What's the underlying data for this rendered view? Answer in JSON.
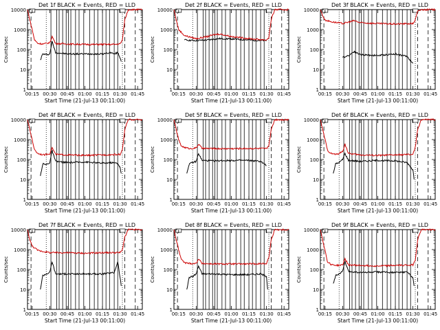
{
  "figure": {
    "x_ticks": [
      "00:15",
      "00:30",
      "00:45",
      "01:00",
      "01:15",
      "01:30",
      "01:45"
    ],
    "y_ticks": [
      "1",
      "10",
      "100",
      "1000",
      "10000"
    ],
    "ylabel": "Counts/sec",
    "xlabel_prefix": "Start Time (21-Jul-13 00:11:00)",
    "line_colors": {
      "events": "#000000",
      "lld": "#cc0000"
    }
  },
  "chart_data": [
    {
      "type": "line",
      "log_y": true,
      "ylim": [
        1,
        10000
      ],
      "title": "Det 1f BLACK = Events, RED = LLD",
      "xlabel": "Start Time (21-Jul-13 00:11:00)",
      "ylabel": "Counts/sec",
      "x_range": [
        "00:11",
        "01:49"
      ],
      "series": [
        {
          "name": "Events",
          "color": "#000000",
          "x": [
            "00:22",
            "00:24",
            "00:27",
            "00:30",
            "00:32",
            "00:35",
            "00:45",
            "01:00",
            "01:15",
            "01:22",
            "01:25",
            "01:28",
            "01:30",
            "01:31"
          ],
          "y": [
            30,
            60,
            55,
            60,
            250,
            70,
            60,
            60,
            60,
            70,
            60,
            70,
            40,
            25
          ]
        },
        {
          "name": "LLD",
          "color": "#cc0000",
          "x": [
            "00:11",
            "00:13",
            "00:15",
            "00:17",
            "00:20",
            "00:25",
            "00:30",
            "00:32",
            "00:35",
            "00:45",
            "01:00",
            "01:15",
            "01:25",
            "01:30",
            "01:32",
            "01:34",
            "01:37",
            "01:42",
            "01:49"
          ],
          "y": [
            10000,
            3000,
            1000,
            300,
            200,
            190,
            220,
            450,
            200,
            190,
            180,
            180,
            180,
            190,
            300,
            3000,
            10000,
            10000,
            10000
          ]
        }
      ]
    },
    {
      "type": "line",
      "log_y": true,
      "ylim": [
        1,
        10000
      ],
      "title": "Det 2f BLACK = Events, RED = LLD",
      "xlabel": "Start Time (21-Jul-13 00:11:00)",
      "ylabel": "Counts/sec",
      "x_range": [
        "00:11",
        "01:49"
      ],
      "series": [
        {
          "name": "Events",
          "color": "#000000",
          "x": [
            "00:20",
            "00:30",
            "00:40",
            "00:50",
            "01:00",
            "01:10",
            "01:20",
            "01:30"
          ],
          "y": [
            300,
            280,
            300,
            350,
            340,
            310,
            290,
            280
          ]
        },
        {
          "name": "LLD",
          "color": "#cc0000",
          "x": [
            "00:11",
            "00:13",
            "00:15",
            "00:20",
            "00:30",
            "00:40",
            "00:45",
            "00:50",
            "01:00",
            "01:10",
            "01:20",
            "01:30",
            "01:32",
            "01:34",
            "01:37",
            "01:42",
            "01:49"
          ],
          "y": [
            10000,
            3000,
            1000,
            500,
            350,
            450,
            550,
            600,
            450,
            380,
            330,
            300,
            400,
            3000,
            10000,
            10000,
            10000
          ]
        }
      ]
    },
    {
      "type": "line",
      "log_y": true,
      "ylim": [
        1,
        10000
      ],
      "title": "Det 3f BLACK = Events, RED = LLD",
      "xlabel": "Start Time (21-Jul-13 00:11:00)",
      "ylabel": "Counts/sec",
      "x_range": [
        "00:11",
        "01:49"
      ],
      "series": [
        {
          "name": "Events",
          "color": "#000000",
          "x": [
            "00:30",
            "00:35",
            "00:40",
            "00:45",
            "01:00",
            "01:15",
            "01:25",
            "01:30"
          ],
          "y": [
            40,
            50,
            80,
            55,
            50,
            60,
            45,
            20
          ]
        },
        {
          "name": "LLD",
          "color": "#cc0000",
          "x": [
            "00:11",
            "00:13",
            "00:15",
            "00:20",
            "00:30",
            "00:40",
            "00:45",
            "01:00",
            "01:15",
            "01:30",
            "01:32",
            "01:34",
            "01:37",
            "01:42",
            "01:49"
          ],
          "y": [
            10000,
            5000,
            3000,
            2500,
            2000,
            2800,
            2200,
            2000,
            1900,
            2000,
            3000,
            8000,
            10000,
            10000,
            10000
          ]
        }
      ]
    },
    {
      "type": "line",
      "log_y": true,
      "ylim": [
        1,
        10000
      ],
      "title": "Det 4f BLACK = Events, RED = LLD",
      "xlabel": "Start Time (21-Jul-13 00:11:00)",
      "ylabel": "Counts/sec",
      "x_range": [
        "00:11",
        "01:49"
      ],
      "series": [
        {
          "name": "Events",
          "color": "#000000",
          "x": [
            "00:22",
            "00:24",
            "00:27",
            "00:30",
            "00:32",
            "00:35",
            "00:45",
            "01:00",
            "01:15",
            "01:22",
            "01:28",
            "01:30",
            "01:31"
          ],
          "y": [
            15,
            60,
            55,
            70,
            280,
            80,
            70,
            75,
            65,
            70,
            65,
            40,
            20
          ]
        },
        {
          "name": "LLD",
          "color": "#cc0000",
          "x": [
            "00:11",
            "00:13",
            "00:15",
            "00:17",
            "00:20",
            "00:25",
            "00:30",
            "00:32",
            "00:35",
            "00:45",
            "01:00",
            "01:15",
            "01:30",
            "01:32",
            "01:34",
            "01:37",
            "01:42",
            "01:49"
          ],
          "y": [
            10000,
            3000,
            1000,
            300,
            200,
            170,
            200,
            400,
            180,
            170,
            160,
            170,
            180,
            300,
            3000,
            10000,
            10000,
            10000
          ]
        }
      ]
    },
    {
      "type": "line",
      "log_y": true,
      "ylim": [
        1,
        10000
      ],
      "title": "Det 5f BLACK = Events, RED = LLD",
      "xlabel": "Start Time (21-Jul-13 00:11:00)",
      "ylabel": "Counts/sec",
      "x_range": [
        "00:11",
        "01:49"
      ],
      "series": [
        {
          "name": "Events",
          "color": "#000000",
          "x": [
            "00:22",
            "00:24",
            "00:27",
            "00:30",
            "00:32",
            "00:35",
            "00:45",
            "01:00",
            "01:15",
            "01:25",
            "01:30"
          ],
          "y": [
            20,
            60,
            70,
            80,
            200,
            90,
            85,
            90,
            90,
            80,
            50
          ]
        },
        {
          "name": "LLD",
          "color": "#cc0000",
          "x": [
            "00:11",
            "00:13",
            "00:15",
            "00:17",
            "00:20",
            "00:25",
            "00:30",
            "00:32",
            "00:35",
            "00:45",
            "01:00",
            "01:15",
            "01:30",
            "01:32",
            "01:34",
            "01:37",
            "01:42",
            "01:49"
          ],
          "y": [
            10000,
            3000,
            1000,
            500,
            400,
            350,
            380,
            600,
            360,
            350,
            350,
            360,
            350,
            500,
            3000,
            10000,
            10000,
            10000
          ]
        }
      ]
    },
    {
      "type": "line",
      "log_y": true,
      "ylim": [
        1,
        10000
      ],
      "title": "Det 6f BLACK = Events, RED = LLD",
      "xlabel": "Start Time (21-Jul-13 00:11:00)",
      "ylabel": "Counts/sec",
      "x_range": [
        "00:11",
        "01:49"
      ],
      "series": [
        {
          "name": "Events",
          "color": "#000000",
          "x": [
            "00:22",
            "00:24",
            "00:27",
            "00:30",
            "00:32",
            "00:35",
            "00:45",
            "01:00",
            "01:15",
            "01:25",
            "01:30",
            "01:31"
          ],
          "y": [
            20,
            60,
            70,
            100,
            200,
            90,
            80,
            90,
            85,
            70,
            30,
            10
          ]
        },
        {
          "name": "LLD",
          "color": "#cc0000",
          "x": [
            "00:11",
            "00:13",
            "00:15",
            "00:17",
            "00:20",
            "00:25",
            "00:30",
            "00:32",
            "00:35",
            "00:45",
            "01:00",
            "01:15",
            "01:30",
            "01:32",
            "01:34",
            "01:37",
            "01:42",
            "01:49"
          ],
          "y": [
            10000,
            3000,
            1000,
            300,
            200,
            180,
            250,
            600,
            200,
            170,
            160,
            170,
            180,
            400,
            3000,
            10000,
            10000,
            10000
          ]
        }
      ]
    },
    {
      "type": "line",
      "log_y": true,
      "ylim": [
        1,
        10000
      ],
      "title": "Det 7f BLACK = Events, RED = LLD",
      "xlabel": "Start Time (21-Jul-13 00:11:00)",
      "ylabel": "Counts/sec",
      "x_range": [
        "00:11",
        "01:49"
      ],
      "series": [
        {
          "name": "Events",
          "color": "#000000",
          "x": [
            "00:22",
            "00:24",
            "00:27",
            "00:30",
            "00:32",
            "00:35",
            "00:45",
            "01:00",
            "01:15",
            "01:25",
            "01:28",
            "01:30",
            "01:31"
          ],
          "y": [
            10,
            50,
            60,
            70,
            250,
            60,
            60,
            60,
            60,
            70,
            250,
            40,
            15
          ]
        },
        {
          "name": "LLD",
          "color": "#cc0000",
          "x": [
            "00:11",
            "00:13",
            "00:15",
            "00:20",
            "00:30",
            "00:45",
            "01:00",
            "01:15",
            "01:30",
            "01:32",
            "01:34",
            "01:37",
            "01:42",
            "01:49"
          ],
          "y": [
            10000,
            3000,
            1500,
            900,
            700,
            700,
            650,
            700,
            700,
            1000,
            4000,
            10000,
            10000,
            10000
          ]
        }
      ]
    },
    {
      "type": "line",
      "log_y": true,
      "ylim": [
        1,
        10000
      ],
      "title": "Det 8f BLACK = Events, RED = LLD",
      "xlabel": "Start Time (21-Jul-13 00:11:00)",
      "ylabel": "Counts/sec",
      "x_range": [
        "00:11",
        "01:49"
      ],
      "series": [
        {
          "name": "Events",
          "color": "#000000",
          "x": [
            "00:22",
            "00:24",
            "00:27",
            "00:30",
            "00:32",
            "00:35",
            "00:45",
            "01:00",
            "01:15",
            "01:25",
            "01:30",
            "01:31"
          ],
          "y": [
            10,
            40,
            45,
            60,
            150,
            60,
            60,
            55,
            55,
            60,
            45,
            10
          ]
        },
        {
          "name": "LLD",
          "color": "#cc0000",
          "x": [
            "00:11",
            "00:13",
            "00:15",
            "00:17",
            "00:20",
            "00:25",
            "00:30",
            "00:32",
            "00:35",
            "00:45",
            "01:00",
            "01:15",
            "01:30",
            "01:32",
            "01:34",
            "01:37",
            "01:42",
            "01:49"
          ],
          "y": [
            10000,
            3000,
            1000,
            350,
            220,
            200,
            200,
            350,
            200,
            190,
            190,
            190,
            200,
            400,
            3000,
            10000,
            10000,
            10000
          ]
        }
      ]
    },
    {
      "type": "line",
      "log_y": true,
      "ylim": [
        1,
        10000
      ],
      "title": "Det 9f BLACK = Events, RED = LLD",
      "xlabel": "Start Time (21-Jul-13 00:11:00)",
      "ylabel": "Counts/sec",
      "x_range": [
        "00:11",
        "01:49"
      ],
      "series": [
        {
          "name": "Events",
          "color": "#000000",
          "x": [
            "00:22",
            "00:24",
            "00:27",
            "00:30",
            "00:32",
            "00:35",
            "00:45",
            "01:00",
            "01:15",
            "01:25",
            "01:30",
            "01:31"
          ],
          "y": [
            20,
            50,
            60,
            80,
            250,
            80,
            70,
            75,
            70,
            75,
            40,
            15
          ]
        },
        {
          "name": "LLD",
          "color": "#cc0000",
          "x": [
            "00:11",
            "00:13",
            "00:15",
            "00:17",
            "00:20",
            "00:25",
            "00:30",
            "00:32",
            "00:35",
            "00:45",
            "01:00",
            "01:15",
            "01:30",
            "01:32",
            "01:34",
            "01:37",
            "01:42",
            "01:49"
          ],
          "y": [
            10000,
            3000,
            900,
            250,
            180,
            160,
            170,
            350,
            170,
            160,
            150,
            160,
            170,
            300,
            3000,
            10000,
            10000,
            10000
          ]
        }
      ]
    }
  ]
}
